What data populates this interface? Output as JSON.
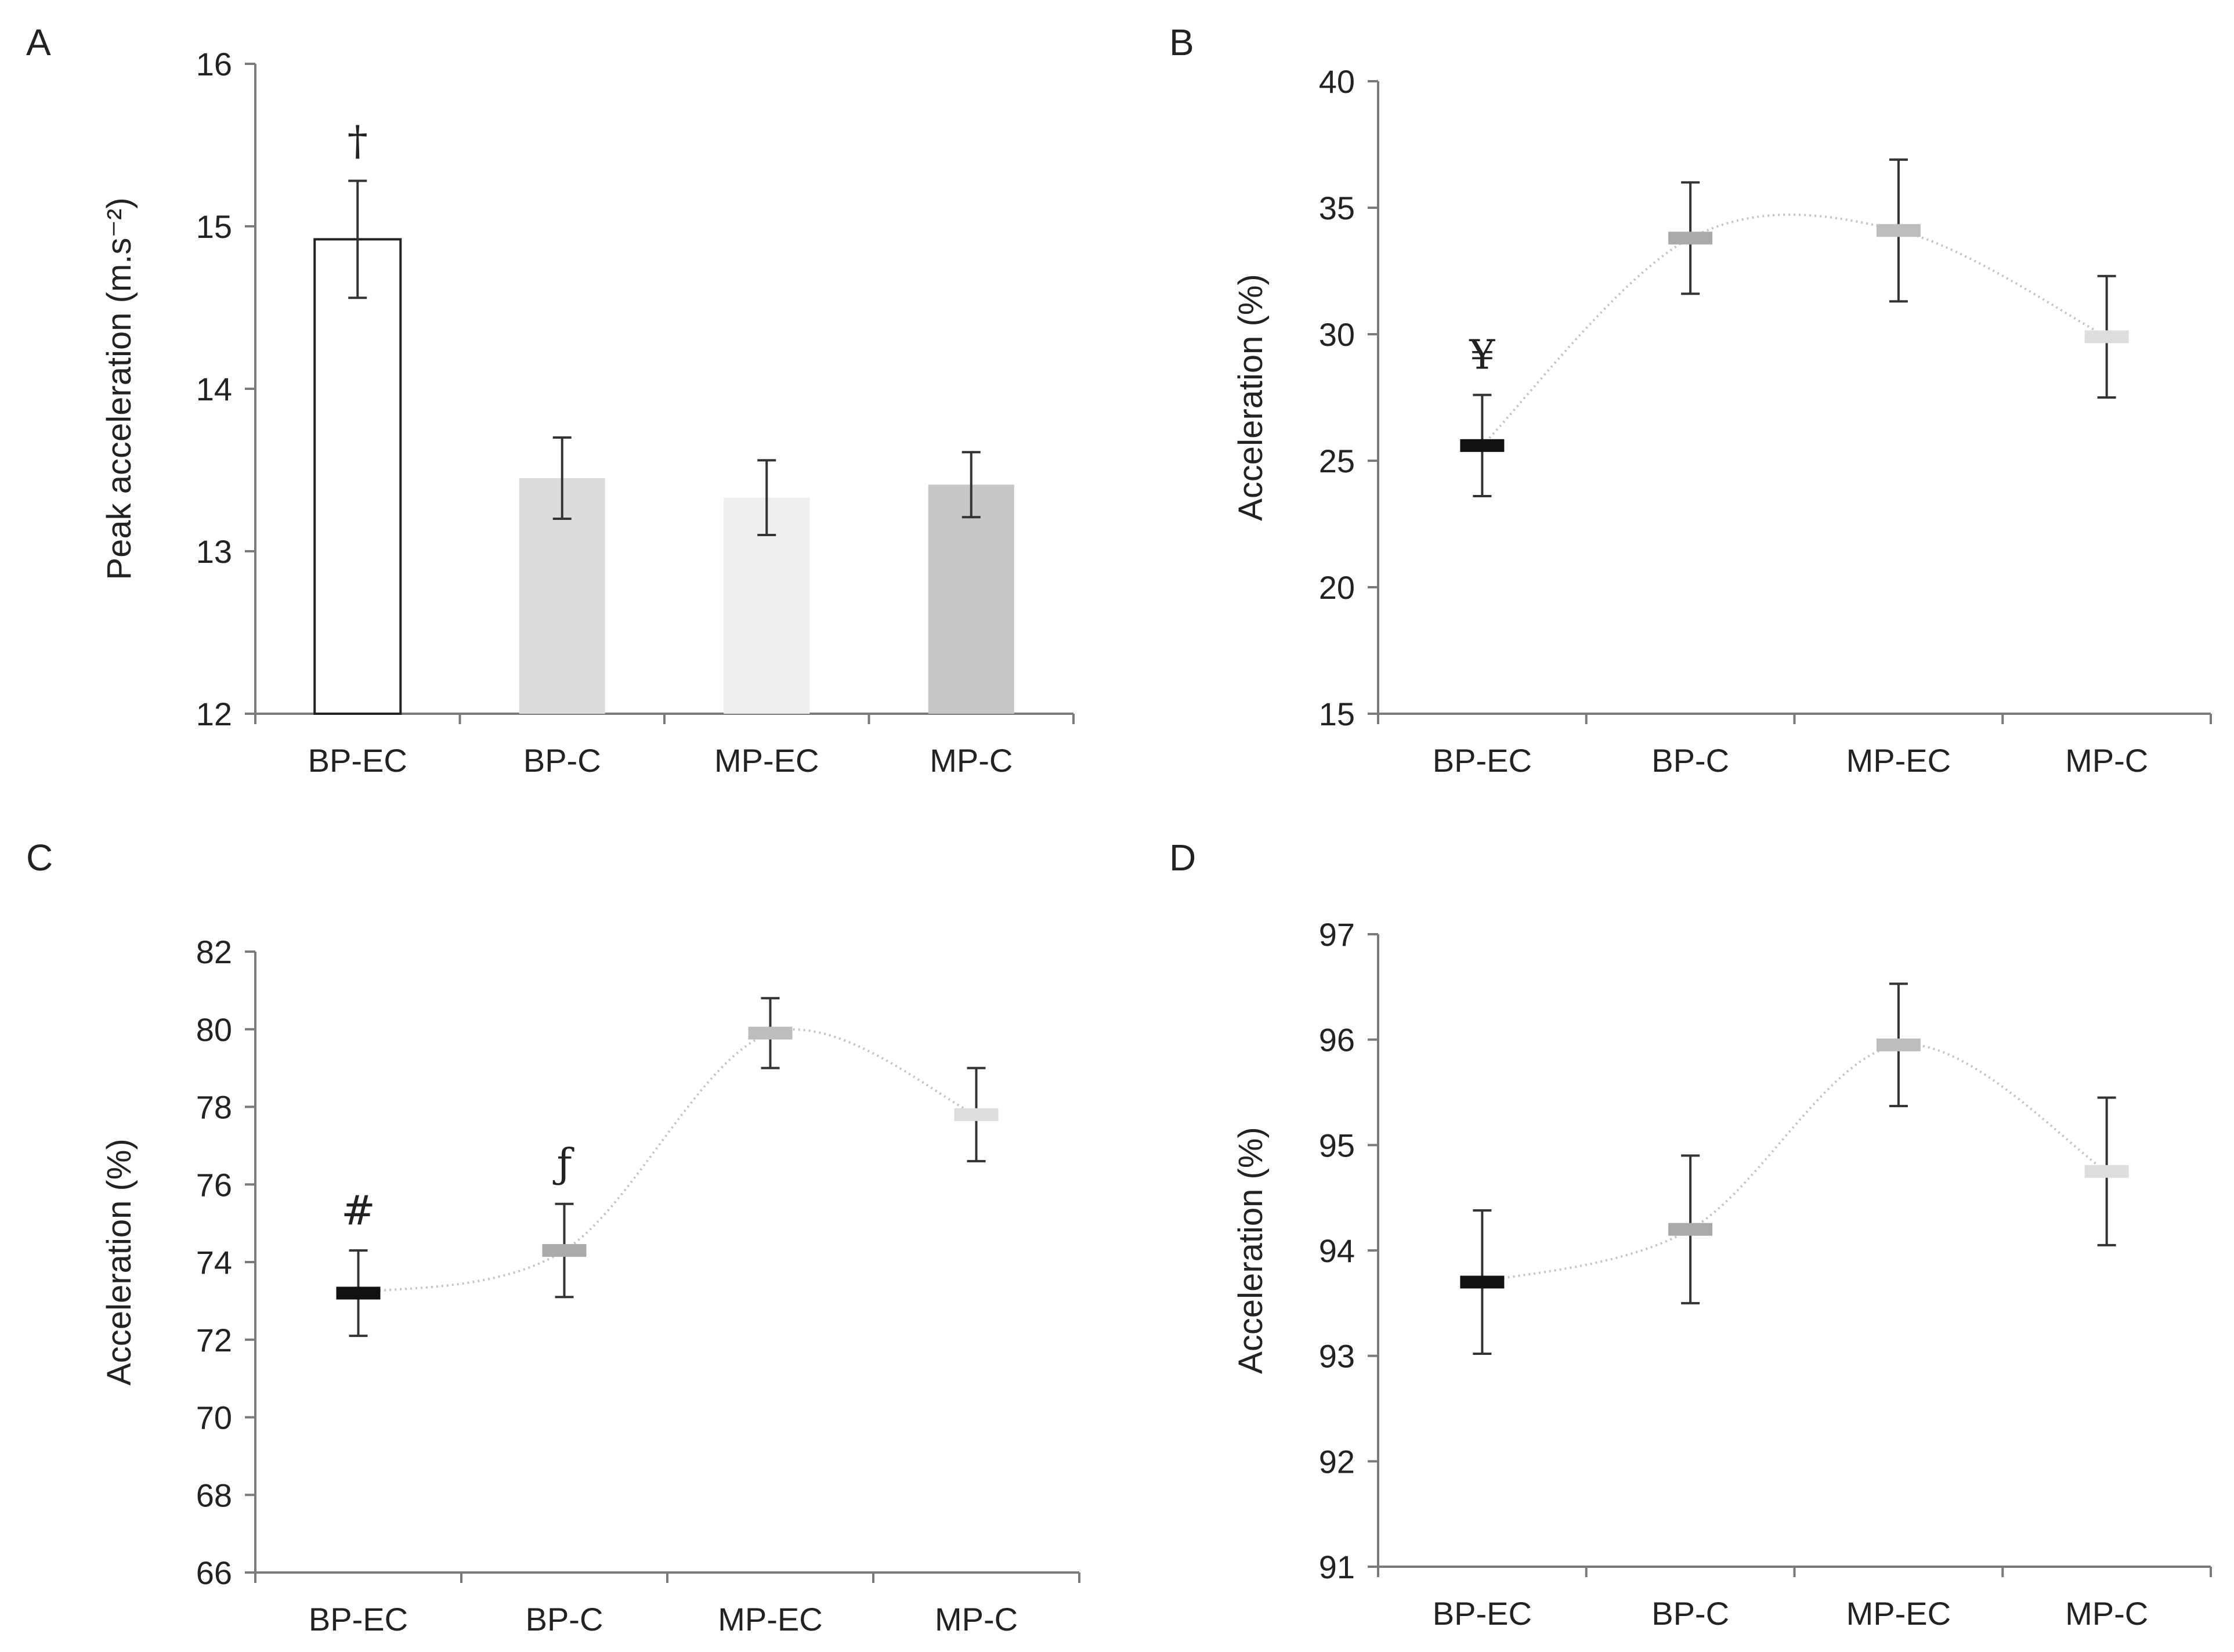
{
  "chart_data": [
    {
      "panel": "A",
      "type": "bar",
      "title": "",
      "xlabel": "",
      "ylabel": "Peak acceleration (m.s⁻²)",
      "ylim": [
        12,
        16
      ],
      "yticks": [
        12,
        13,
        14,
        15,
        16
      ],
      "categories": [
        "BP-EC",
        "BP-C",
        "MP-EC",
        "MP-C"
      ],
      "values": [
        14.92,
        13.45,
        13.33,
        13.41
      ],
      "errors": [
        0.36,
        0.25,
        0.23,
        0.2
      ],
      "colors": [
        "#ffffff",
        "#dcdcdc",
        "#efefef",
        "#c7c7c7"
      ],
      "annotations": [
        {
          "category": "BP-EC",
          "text": "†"
        }
      ]
    },
    {
      "panel": "B",
      "type": "line",
      "title": "",
      "xlabel": "",
      "ylabel": "Acceleration (%)",
      "ylim": [
        15,
        40
      ],
      "yticks": [
        15,
        20,
        25,
        30,
        35,
        40
      ],
      "categories": [
        "BP-EC",
        "BP-C",
        "MP-EC",
        "MP-C"
      ],
      "values": [
        25.6,
        33.8,
        34.1,
        29.9
      ],
      "errors": [
        2.0,
        2.2,
        2.8,
        2.4
      ],
      "colors": [
        "#111111",
        "#aaaaaa",
        "#bdbdbd",
        "#dddddd"
      ],
      "annotations": [
        {
          "category": "BP-EC",
          "text": "¥"
        }
      ]
    },
    {
      "panel": "C",
      "type": "line",
      "title": "",
      "xlabel": "",
      "ylabel": "Acceleration (%)",
      "ylim": [
        66,
        82
      ],
      "yticks": [
        66,
        68,
        70,
        72,
        74,
        76,
        78,
        80,
        82
      ],
      "categories": [
        "BP-EC",
        "BP-C",
        "MP-EC",
        "MP-C"
      ],
      "values": [
        73.2,
        74.3,
        79.9,
        77.8
      ],
      "errors": [
        1.1,
        1.2,
        0.9,
        1.2
      ],
      "colors": [
        "#111111",
        "#aaaaaa",
        "#bdbdbd",
        "#dddddd"
      ],
      "annotations": [
        {
          "category": "BP-EC",
          "text": "#"
        },
        {
          "category": "BP-C",
          "text": "ƒ"
        }
      ]
    },
    {
      "panel": "D",
      "type": "line",
      "title": "",
      "xlabel": "",
      "ylabel": "Acceleration (%)",
      "ylim": [
        91,
        97
      ],
      "yticks": [
        91,
        92,
        93,
        94,
        95,
        96,
        97
      ],
      "categories": [
        "BP-EC",
        "BP-C",
        "MP-EC",
        "MP-C"
      ],
      "values": [
        93.7,
        94.2,
        95.95,
        94.75
      ],
      "errors": [
        0.68,
        0.7,
        0.58,
        0.7
      ],
      "colors": [
        "#111111",
        "#aaaaaa",
        "#bdbdbd",
        "#dddddd"
      ],
      "annotations": []
    }
  ]
}
